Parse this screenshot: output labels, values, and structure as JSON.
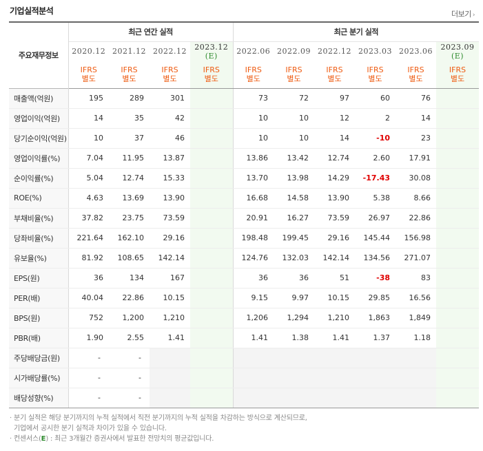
{
  "title": "기업실적분석",
  "more_label": "더보기",
  "header": {
    "label_col": "주요재무정보",
    "annual_group": "최근 연간 실적",
    "quarter_group": "최근 분기 실적",
    "ifrs_line1": "IFRS",
    "ifrs_line2": "별도",
    "annual_periods": [
      "2020.12",
      "2021.12",
      "2022.12",
      "2023.12"
    ],
    "quarter_periods": [
      "2022.06",
      "2022.09",
      "2022.12",
      "2023.03",
      "2023.06",
      "2023.09"
    ],
    "estimate_mark": "(E)"
  },
  "rows": [
    {
      "label": "매출액(억원)",
      "annual": [
        "195",
        "289",
        "301",
        ""
      ],
      "quarter": [
        "73",
        "72",
        "97",
        "60",
        "76",
        ""
      ]
    },
    {
      "label": "영업이익(억원)",
      "annual": [
        "14",
        "35",
        "42",
        ""
      ],
      "quarter": [
        "10",
        "10",
        "12",
        "2",
        "14",
        ""
      ]
    },
    {
      "label": "당기순이익(억원)",
      "annual": [
        "10",
        "37",
        "46",
        ""
      ],
      "quarter": [
        "10",
        "10",
        "14",
        "-10",
        "23",
        ""
      ]
    },
    {
      "label": "영업이익률(%)",
      "annual": [
        "7.04",
        "11.95",
        "13.87",
        ""
      ],
      "quarter": [
        "13.86",
        "13.42",
        "12.74",
        "2.60",
        "17.91",
        ""
      ]
    },
    {
      "label": "순이익률(%)",
      "annual": [
        "5.04",
        "12.74",
        "15.33",
        ""
      ],
      "quarter": [
        "13.70",
        "13.98",
        "14.29",
        "-17.43",
        "30.08",
        ""
      ]
    },
    {
      "label": "ROE(%)",
      "annual": [
        "4.63",
        "13.69",
        "13.90",
        ""
      ],
      "quarter": [
        "16.68",
        "14.58",
        "13.90",
        "5.38",
        "8.66",
        ""
      ]
    },
    {
      "label": "부채비율(%)",
      "annual": [
        "37.82",
        "23.75",
        "73.59",
        ""
      ],
      "quarter": [
        "20.91",
        "16.27",
        "73.59",
        "26.97",
        "22.86",
        ""
      ]
    },
    {
      "label": "당좌비율(%)",
      "annual": [
        "221.64",
        "162.10",
        "29.16",
        ""
      ],
      "quarter": [
        "198.48",
        "199.45",
        "29.16",
        "145.44",
        "156.98",
        ""
      ]
    },
    {
      "label": "유보율(%)",
      "annual": [
        "81.92",
        "108.65",
        "142.14",
        ""
      ],
      "quarter": [
        "124.76",
        "132.03",
        "142.14",
        "134.56",
        "271.07",
        ""
      ]
    },
    {
      "label": "EPS(원)",
      "annual": [
        "36",
        "134",
        "167",
        ""
      ],
      "quarter": [
        "36",
        "36",
        "51",
        "-38",
        "83",
        ""
      ]
    },
    {
      "label": "PER(배)",
      "annual": [
        "40.04",
        "22.86",
        "10.15",
        ""
      ],
      "quarter": [
        "9.15",
        "9.97",
        "10.15",
        "29.85",
        "16.56",
        ""
      ]
    },
    {
      "label": "BPS(원)",
      "annual": [
        "752",
        "1,200",
        "1,210",
        ""
      ],
      "quarter": [
        "1,206",
        "1,294",
        "1,210",
        "1,863",
        "1,849",
        ""
      ]
    },
    {
      "label": "PBR(배)",
      "annual": [
        "1.90",
        "2.55",
        "1.41",
        ""
      ],
      "quarter": [
        "1.41",
        "1.38",
        "1.41",
        "1.37",
        "1.18",
        ""
      ]
    },
    {
      "label": "주당배당금(원)",
      "annual": [
        "-",
        "-",
        "",
        ""
      ],
      "quarter": [
        "",
        "",
        "",
        "",
        "",
        ""
      ]
    },
    {
      "label": "시가배당률(%)",
      "annual": [
        "-",
        "-",
        "",
        ""
      ],
      "quarter": [
        "",
        "",
        "",
        "",
        "",
        ""
      ]
    },
    {
      "label": "배당성향(%)",
      "annual": [
        "-",
        "-",
        "",
        ""
      ],
      "quarter": [
        "",
        "",
        "",
        "",
        "",
        ""
      ]
    }
  ],
  "notes": {
    "line1": "분기 실적은 해당 분기까지의 누적 실적에서 직전 분기까지의 누적 실적을 차감하는 방식으로 계산되므로,",
    "line2": "기업에서 공시한 분기 실적과 차이가 있을 수 있습니다.",
    "line3_prefix": "컨센서스(",
    "line3_mark": "E",
    "line3_suffix": ") : 최근 3개월간 증권사에서 발표한 전망치의 평균값입니다."
  },
  "colors": {
    "negative": "#e00000",
    "ifrs": "#ee5a10",
    "estimate_bg": "#f2faf0",
    "estimate_mark": "#2e8b2e"
  }
}
